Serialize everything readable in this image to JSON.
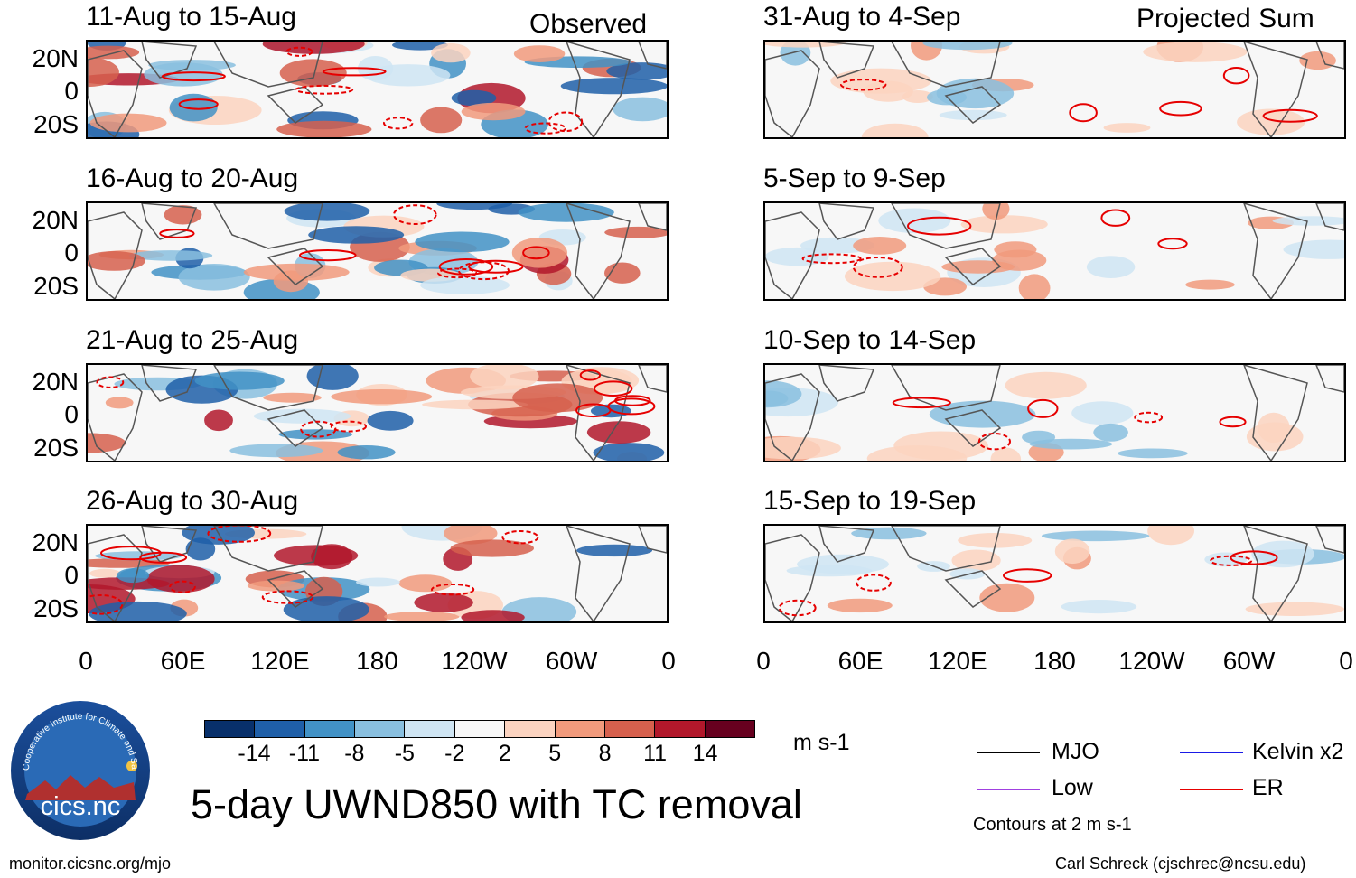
{
  "chart_data": {
    "type": "heatmap",
    "title": "5-day UWND850 with TC removal",
    "variable": "UWND850",
    "units": "m s-1",
    "colorbar": {
      "levels": [
        "-14",
        "-11",
        "-8",
        "-5",
        "-2",
        "2",
        "5",
        "8",
        "11",
        "14"
      ],
      "colors": [
        "#08306b",
        "#1f5fa8",
        "#4292c6",
        "#89bfdf",
        "#cfe5f3",
        "#f7f7f7",
        "#fbd3c0",
        "#f19a7c",
        "#d6604d",
        "#b2182b",
        "#67001f"
      ]
    },
    "x_axis": {
      "ticks": [
        "0",
        "60E",
        "120E",
        "180",
        "120W",
        "60W",
        "0"
      ],
      "range": [
        0,
        360
      ]
    },
    "y_axis": {
      "ticks": [
        "20N",
        "0",
        "20S"
      ],
      "range": [
        -30,
        30
      ]
    },
    "observed_label": "Observed",
    "projected_label": "Projected Sum",
    "panels": [
      {
        "period": "11-Aug to 15-Aug",
        "kind": "observed"
      },
      {
        "period": "16-Aug to 20-Aug",
        "kind": "observed"
      },
      {
        "period": "21-Aug to 25-Aug",
        "kind": "observed"
      },
      {
        "period": "26-Aug to 30-Aug",
        "kind": "observed"
      },
      {
        "period": "31-Aug to 4-Sep",
        "kind": "projected"
      },
      {
        "period": "5-Sep to 9-Sep",
        "kind": "projected"
      },
      {
        "period": "10-Sep to 14-Sep",
        "kind": "projected"
      },
      {
        "period": "15-Sep to 19-Sep",
        "kind": "projected"
      }
    ],
    "legend": [
      {
        "label": "MJO",
        "color": "#000000"
      },
      {
        "label": "Kelvin x2",
        "color": "#1a1ae6"
      },
      {
        "label": "Low",
        "color": "#a040e0"
      },
      {
        "label": "ER",
        "color": "#e60000"
      }
    ],
    "contour_note": "Contours at 2 m s-1"
  },
  "footer": {
    "url": "monitor.cicsnc.org/mjo",
    "credit": "Carl Schreck (cjschrec@ncsu.edu)"
  },
  "logo": {
    "text": "cics.nc",
    "ring_text": "Cooperative Institute for Climate and Satellites"
  }
}
